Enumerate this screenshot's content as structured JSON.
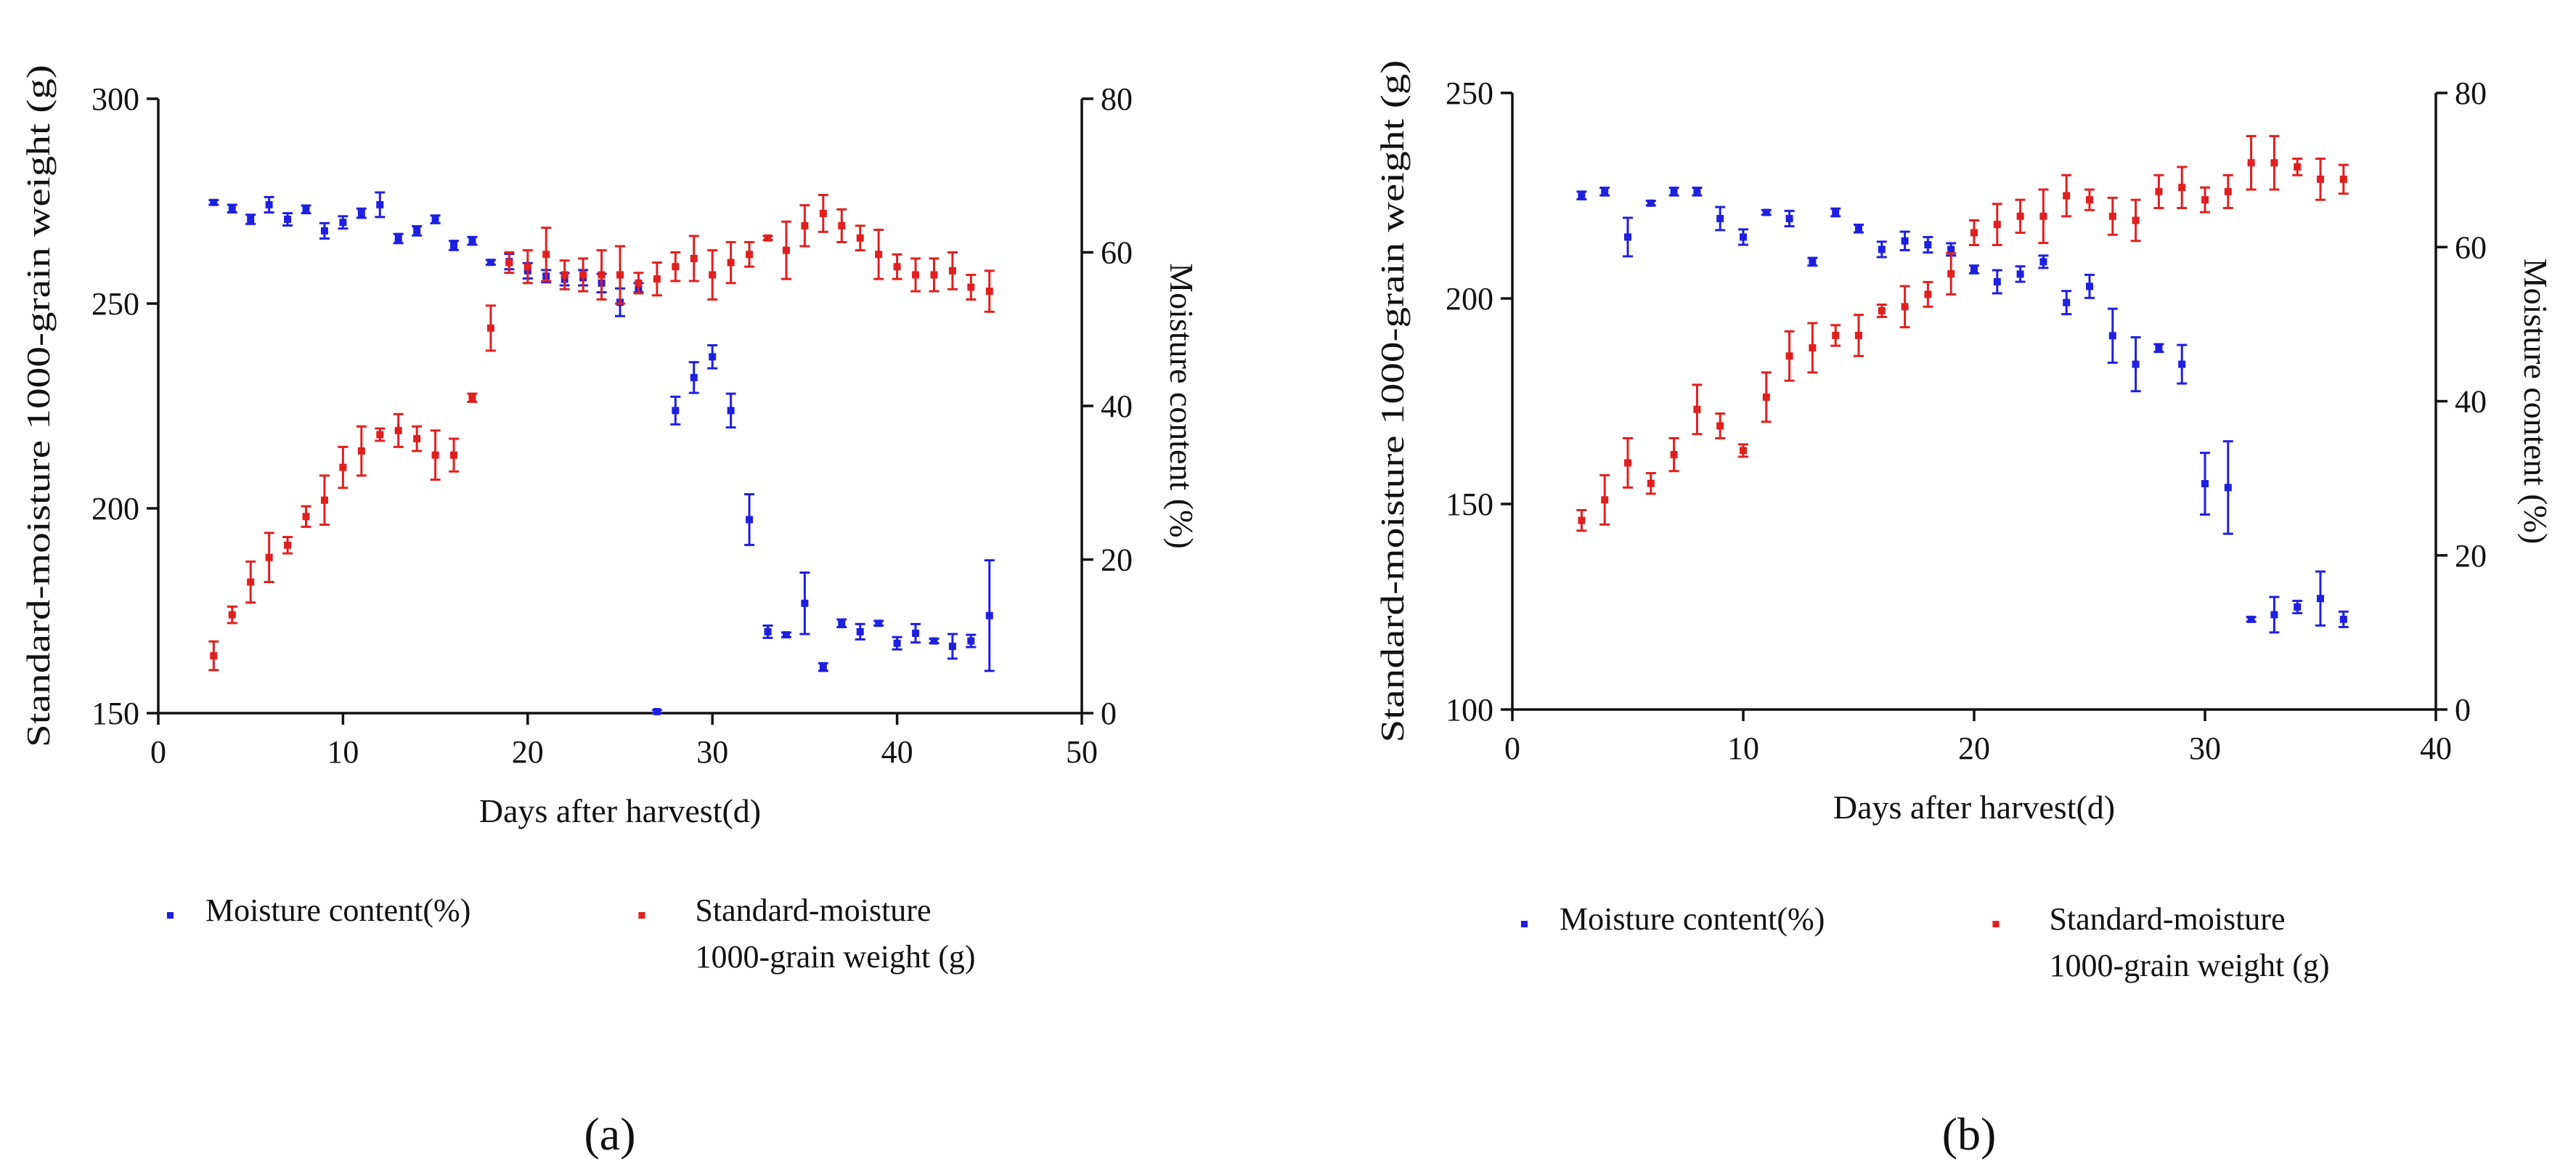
{
  "chart_data": [
    {
      "type": "scatter",
      "panel_label": "(a)",
      "xlabel": "Days after harvest(d)",
      "ylabel_left": "Standard-moisture 1000-grain weight (g)",
      "ylabel_right": "Moisture content (%)",
      "xlim": [
        0,
        50
      ],
      "ylim_left": [
        150,
        300
      ],
      "ylim_right": [
        0,
        80
      ],
      "xticks": [
        0,
        10,
        20,
        30,
        40,
        50
      ],
      "yticks_left": [
        150,
        200,
        250,
        300
      ],
      "yticks_right": [
        0,
        20,
        40,
        60,
        80
      ],
      "legend": {
        "moisture": "Moisture content(%)",
        "weight_line1": "Standard-moisture",
        "weight_line2": "1000-grain weight (g)"
      },
      "series": [
        {
          "name": "Moisture content(%)",
          "axis": "right",
          "color": "#1f1fe0",
          "x": [
            3,
            4,
            5,
            6,
            7,
            8,
            9,
            10,
            11,
            12,
            13,
            14,
            15,
            16,
            17,
            18,
            19,
            20,
            21,
            22,
            23,
            24,
            25,
            26,
            27,
            28,
            29,
            30,
            31,
            32,
            33,
            34,
            35,
            36,
            37,
            38,
            39,
            40,
            41,
            42,
            43,
            44,
            45
          ],
          "y": [
            66.5,
            65.7,
            64.3,
            66.2,
            64.3,
            65.6,
            62.8,
            63.9,
            65.1,
            66.2,
            61.8,
            62.8,
            64.3,
            60.9,
            61.5,
            58.7,
            58.8,
            57.6,
            56.9,
            56.5,
            56.7,
            56.0,
            53.5,
            55.4,
            0.2,
            39.4,
            43.7,
            46.4,
            39.4,
            25.2,
            10.6,
            10.2,
            14.3,
            6.0,
            11.7,
            10.6,
            11.7,
            9.1,
            10.4,
            9.4,
            8.7,
            9.4,
            12.7
          ],
          "err": [
            0.3,
            0.5,
            0.6,
            1.0,
            0.8,
            0.5,
            1.0,
            0.8,
            0.6,
            1.6,
            0.6,
            0.6,
            0.5,
            0.6,
            0.5,
            0.3,
            1.0,
            1.0,
            0.8,
            0.8,
            1.0,
            1.2,
            1.8,
            0.6,
            0.2,
            1.8,
            2.0,
            1.5,
            2.2,
            3.3,
            0.8,
            0.3,
            4.0,
            0.5,
            0.5,
            1.0,
            0.3,
            0.8,
            1.2,
            0.3,
            1.6,
            0.8,
            7.2
          ]
        },
        {
          "name": "Standard-moisture 1000-grain weight (g)",
          "axis": "left",
          "color": "#e01f1f",
          "x": [
            3,
            4,
            5,
            6,
            7,
            8,
            9,
            10,
            11,
            12,
            13,
            14,
            15,
            16,
            17,
            18,
            19,
            20,
            21,
            22,
            23,
            24,
            25,
            26,
            27,
            28,
            29,
            30,
            31,
            32,
            33,
            34,
            35,
            36,
            37,
            38,
            39,
            40,
            41,
            42,
            43,
            44,
            45
          ],
          "y": [
            164,
            174,
            182,
            188,
            191,
            198,
            202,
            210,
            214,
            218,
            219,
            217,
            213,
            213,
            227,
            244,
            260,
            259,
            262,
            257,
            257,
            257,
            257,
            255,
            256,
            259,
            261,
            257,
            260,
            262,
            266,
            263,
            269,
            272,
            269,
            266,
            262,
            259,
            257,
            257,
            258,
            254,
            253
          ],
          "err": [
            3.5,
            2,
            5,
            6,
            2,
            2.5,
            6,
            5,
            6,
            1.5,
            4,
            3,
            6,
            4,
            1,
            5.5,
            2.5,
            4,
            6.5,
            3.5,
            4,
            6,
            7,
            2.5,
            4,
            3.5,
            5.5,
            6,
            5,
            3,
            0.5,
            7,
            5,
            4.5,
            4,
            3,
            6,
            3,
            4,
            4,
            4.5,
            3,
            5
          ]
        }
      ]
    },
    {
      "type": "scatter",
      "panel_label": "(b)",
      "xlabel": "Days after harvest(d)",
      "ylabel_left": "Standard-moisture 1000-grain weight (g)",
      "ylabel_right": "Moisture content (%)",
      "xlim": [
        0,
        40
      ],
      "ylim_left": [
        100,
        250
      ],
      "ylim_right": [
        0,
        80
      ],
      "xticks": [
        0,
        10,
        20,
        30,
        40
      ],
      "yticks_left": [
        100,
        150,
        200,
        250
      ],
      "yticks_right": [
        0,
        20,
        40,
        60,
        80
      ],
      "legend": {
        "moisture": "Moisture content(%)",
        "weight_line1": "Standard-moisture",
        "weight_line2": "1000-grain weight (g)"
      },
      "series": [
        {
          "name": "Moisture content(%)",
          "axis": "right",
          "color": "#1f1fe0",
          "x": [
            3,
            4,
            5,
            6,
            7,
            8,
            9,
            10,
            11,
            12,
            13,
            14,
            15,
            16,
            17,
            18,
            19,
            20,
            21,
            22,
            23,
            24,
            25,
            26,
            27,
            28,
            29,
            30,
            31,
            32,
            33,
            34,
            35,
            36
          ],
          "y": [
            66.7,
            67.2,
            61.3,
            65.7,
            67.2,
            67.2,
            63.7,
            61.3,
            64.5,
            63.7,
            58.1,
            64.5,
            62.4,
            59.7,
            60.8,
            60.3,
            59.7,
            57.1,
            55.5,
            56.5,
            58.1,
            52.8,
            54.9,
            48.5,
            44.8,
            46.9,
            44.8,
            29.3,
            28.8,
            11.7,
            12.3,
            13.3,
            14.4,
            11.7
          ],
          "err": [
            0.5,
            0.5,
            2.5,
            0.3,
            0.5,
            0.5,
            1.5,
            1.0,
            0.3,
            1.0,
            0.5,
            0.5,
            0.5,
            1.0,
            1.2,
            1.0,
            0.8,
            0.5,
            1.5,
            1.0,
            0.8,
            1.5,
            1.5,
            3.5,
            3.5,
            0.5,
            2.5,
            4.0,
            6.0,
            0.3,
            2.3,
            0.8,
            3.5,
            1.0
          ]
        },
        {
          "name": "Standard-moisture 1000-grain weight (g)",
          "axis": "left",
          "color": "#e01f1f",
          "x": [
            3,
            4,
            5,
            6,
            7,
            8,
            9,
            10,
            11,
            12,
            13,
            14,
            15,
            16,
            17,
            18,
            19,
            20,
            21,
            22,
            23,
            24,
            25,
            26,
            27,
            28,
            29,
            30,
            31,
            32,
            33,
            34,
            35,
            36
          ],
          "y": [
            146,
            151,
            160,
            155,
            162,
            173,
            169,
            163,
            176,
            186,
            188,
            191,
            191,
            197,
            198,
            201,
            206,
            216,
            218,
            220,
            220,
            225,
            224,
            220,
            219,
            226,
            227,
            224,
            226,
            233,
            233,
            232,
            229,
            229
          ],
          "err": [
            2.5,
            6,
            6,
            2.5,
            4,
            6,
            3,
            1.5,
            6,
            6,
            6,
            2.5,
            5,
            1.5,
            5,
            3,
            5,
            3,
            5,
            4,
            6.5,
            5,
            2.5,
            4.5,
            5,
            4,
            5,
            3,
            4,
            6.5,
            6.5,
            2,
            5,
            3.5
          ]
        }
      ]
    }
  ]
}
